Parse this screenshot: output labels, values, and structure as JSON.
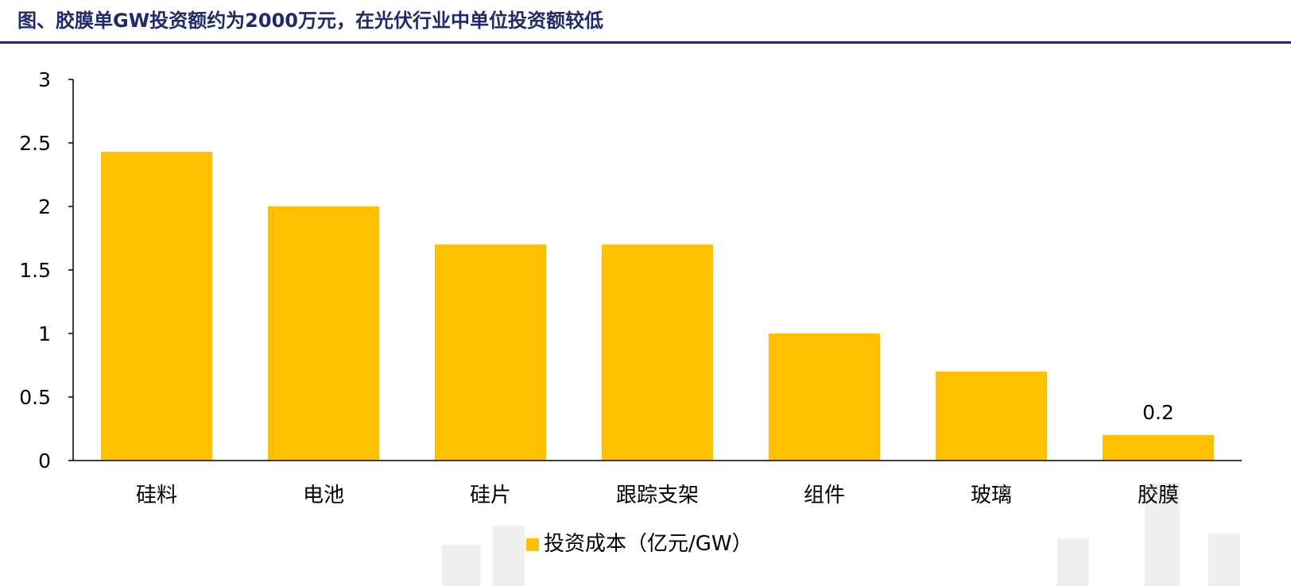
{
  "header": {
    "title": "图、胶膜单GW投资额约为2000万元，在光伏行业中单位投资额较低"
  },
  "colors": {
    "title": "#1f2a6b",
    "bar": "#ffc000",
    "axis": "#000000"
  },
  "chart_data": {
    "type": "bar",
    "categories": [
      "硅料",
      "电池",
      "硅片",
      "跟踪支架",
      "组件",
      "玻璃",
      "胶膜"
    ],
    "series": [
      {
        "name": "投资成本（亿元/GW）",
        "values": [
          2.43,
          2.0,
          1.7,
          1.7,
          1.0,
          0.7,
          0.2
        ]
      }
    ],
    "ylim": [
      0,
      3
    ],
    "yticks": [
      "0",
      "0.5",
      "1",
      "1.5",
      "2",
      "2.5",
      "3"
    ],
    "data_labels": [
      {
        "category": "胶膜",
        "text": "0.2"
      }
    ],
    "legend_position": "bottom-center",
    "grid": false
  }
}
